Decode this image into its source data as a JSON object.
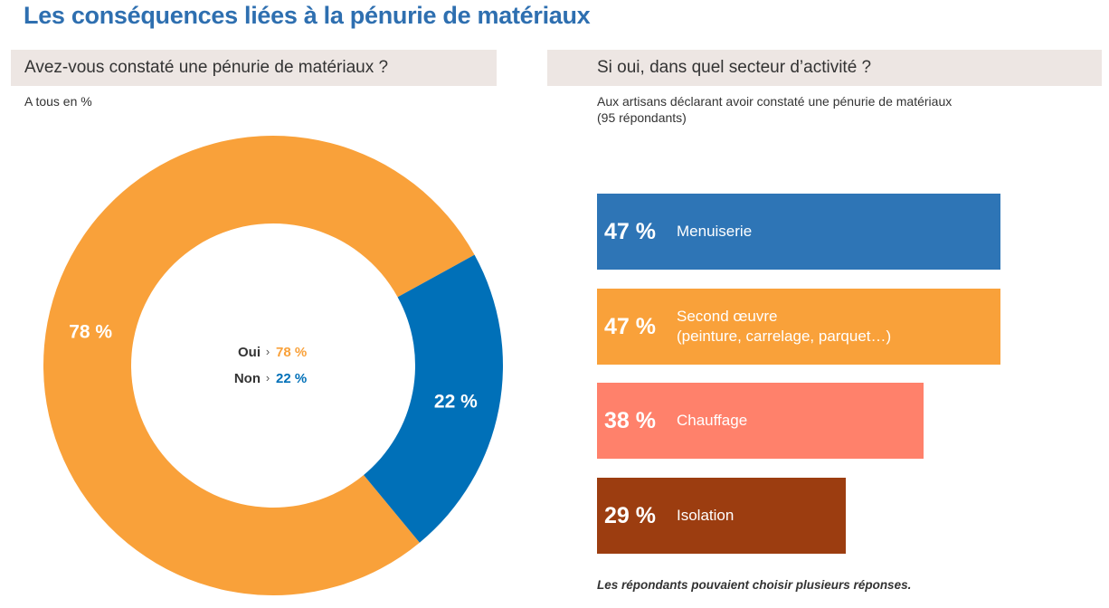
{
  "title": "Les conséquences liées à la pénurie de matériaux",
  "left_panel": {
    "question": "Avez-vous constaté une pénurie de matériaux ?",
    "base_note": "A tous en %",
    "chart_data": {
      "type": "pie",
      "labels": [
        "Oui",
        "Non"
      ],
      "values": [
        78,
        22
      ],
      "value_labels": [
        "78 %",
        "22 %"
      ],
      "colors": [
        "#f9a13a",
        "#0070b8"
      ],
      "legend": [
        {
          "label": "Oui",
          "separator": "›",
          "value": "78 %",
          "color": "#f9a13a"
        },
        {
          "label": "Non",
          "separator": "›",
          "value": "22 %",
          "color": "#0070b8"
        }
      ]
    }
  },
  "right_panel": {
    "question": "Si oui, dans quel secteur d’activité ?",
    "base_note": "Aux artisans déclarant avoir constaté une pénurie de matériaux\n(95 répondants)",
    "chart_data": {
      "type": "bar",
      "orientation": "horizontal",
      "categories": [
        "Menuiserie",
        "Second œuvre\n(peinture, carrelage, parquet…)",
        "Chauffage",
        "Isolation"
      ],
      "values": [
        47,
        47,
        38,
        29
      ],
      "value_labels": [
        "47 %",
        "47 %",
        "38 %",
        "29 %"
      ],
      "colors": [
        "#2e75b6",
        "#f9a13a",
        "#ff816b",
        "#9c3d10"
      ]
    },
    "footnote": "Les répondants pouvaient choisir plusieurs réponses."
  }
}
